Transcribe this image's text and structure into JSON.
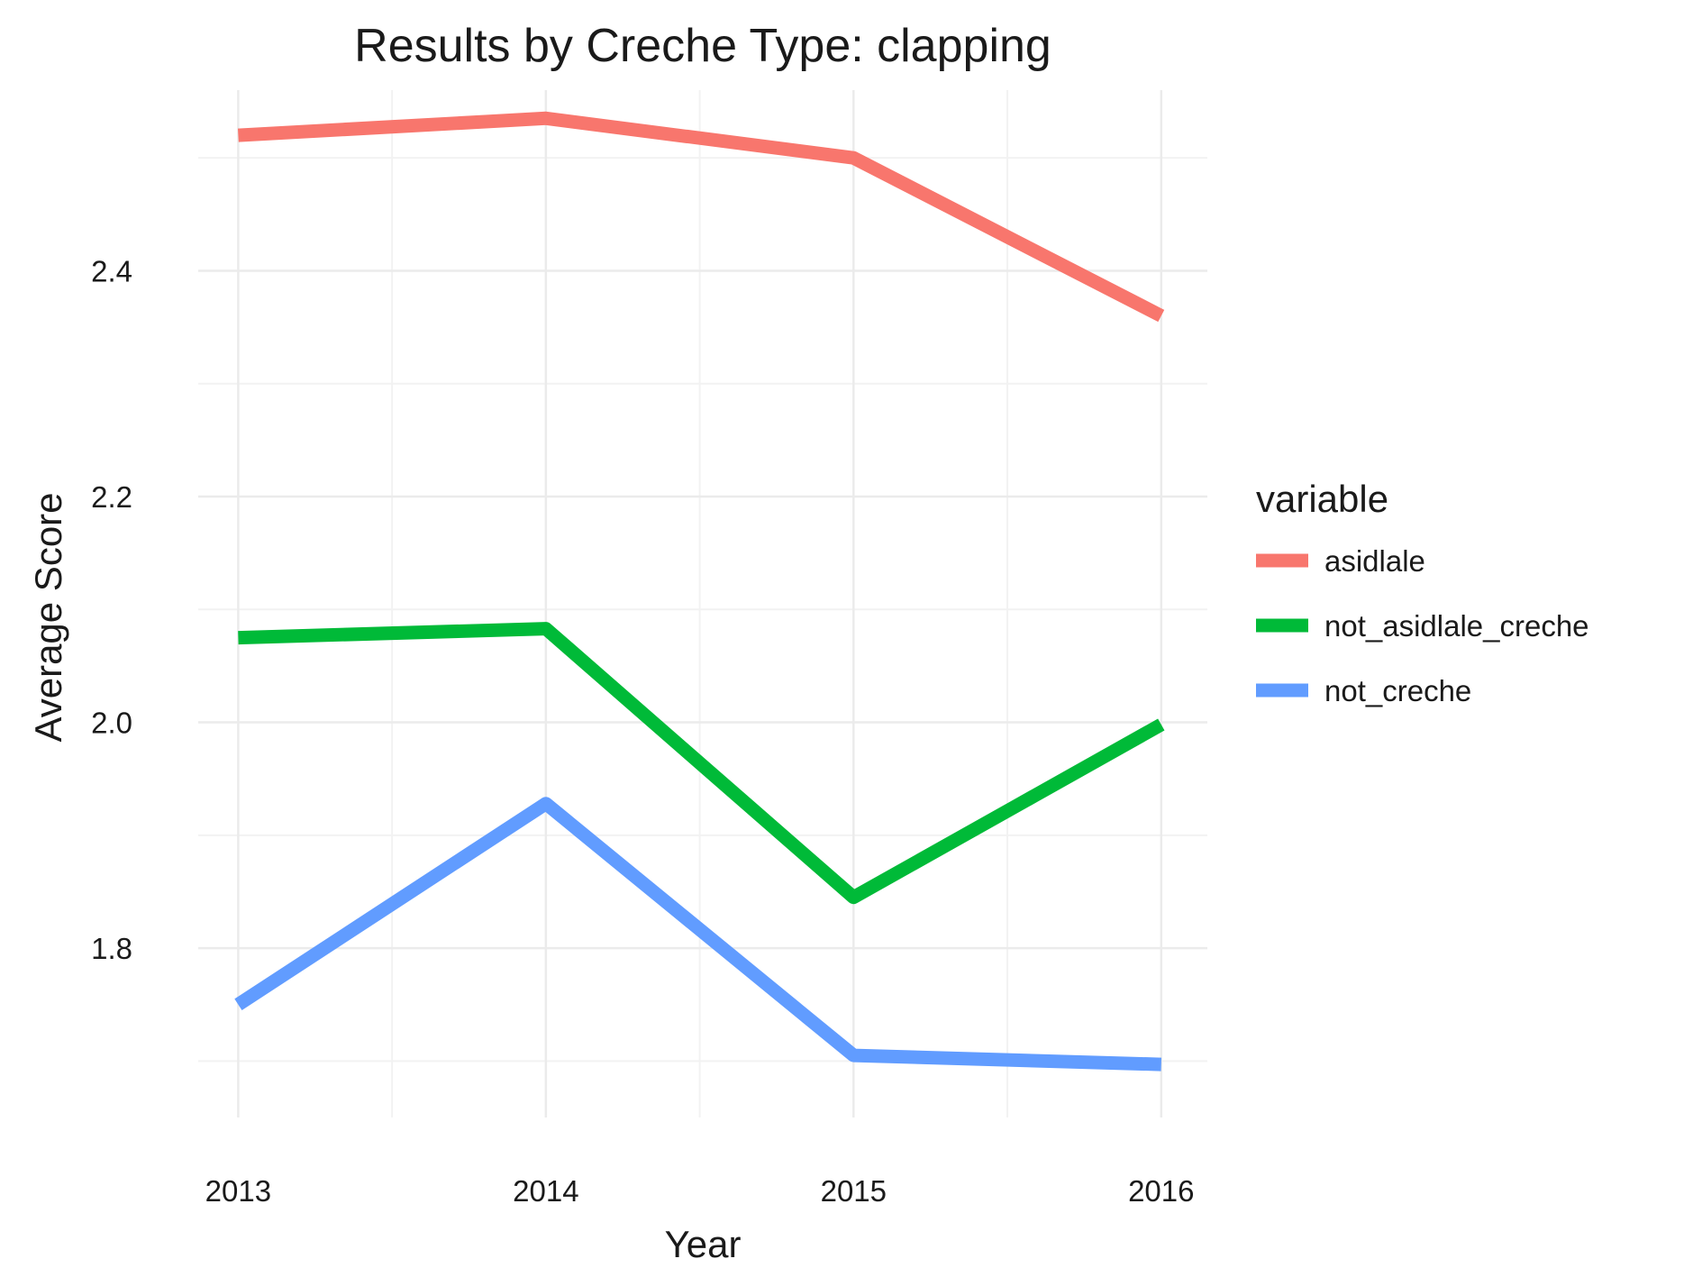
{
  "chart_data": {
    "type": "line",
    "title": "Results by Creche Type: clapping",
    "xlabel": "Year",
    "ylabel": "Average Score",
    "x": [
      2013,
      2014,
      2015,
      2016
    ],
    "x_tick_labels": [
      "2013",
      "2014",
      "2015",
      "2016"
    ],
    "y_ticks": [
      1.8,
      2.0,
      2.2,
      2.4
    ],
    "y_tick_labels": [
      "1.8",
      "2.0",
      "2.2",
      "2.4"
    ],
    "xlim": [
      2012.87,
      2016.15
    ],
    "ylim": [
      1.65,
      2.56
    ],
    "grid": true,
    "legend": {
      "title": "variable",
      "position": "right"
    },
    "series": [
      {
        "name": "asidlale",
        "color": "#F8766D",
        "values": [
          2.52,
          2.535,
          2.5,
          2.36
        ]
      },
      {
        "name": "not_asidlale_creche",
        "color": "#00BA38",
        "values": [
          2.075,
          2.083,
          1.845,
          1.998
        ]
      },
      {
        "name": "not_creche",
        "color": "#619CFF",
        "values": [
          1.75,
          1.928,
          1.705,
          1.697
        ]
      }
    ]
  }
}
